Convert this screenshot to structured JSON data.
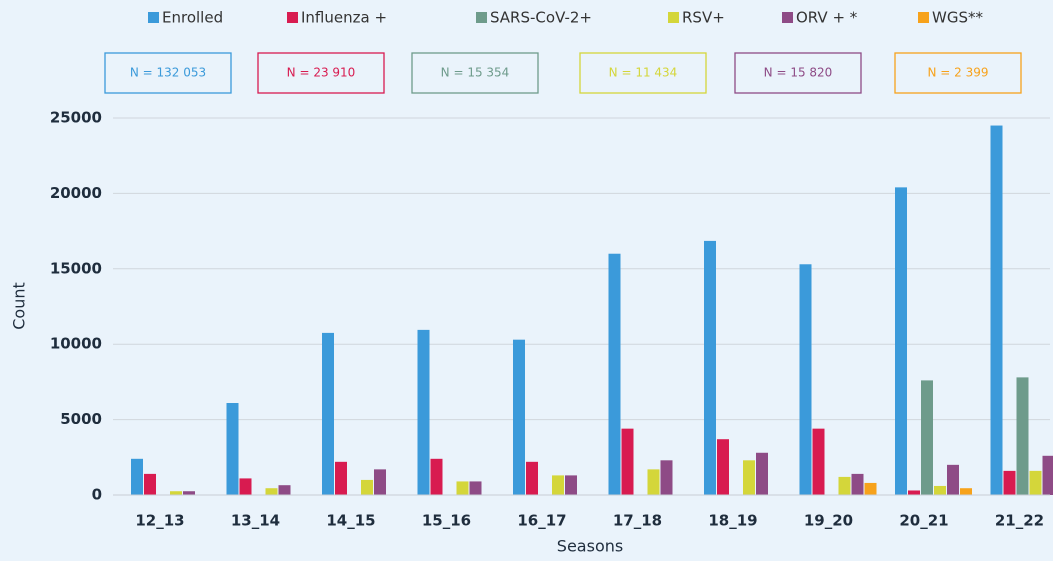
{
  "chart_data": {
    "type": "bar",
    "categories": [
      "12_13",
      "13_14",
      "14_15",
      "15_16",
      "16_17",
      "17_18",
      "18_19",
      "19_20",
      "20_21",
      "21_22"
    ],
    "series": [
      {
        "name": "Enrolled",
        "color": "#3b9ada",
        "n_label": "N = 132 053",
        "values": [
          2400,
          6100,
          10750,
          10950,
          10300,
          16000,
          16850,
          15300,
          20400,
          24500
        ]
      },
      {
        "name": "Influenza +",
        "color": "#d81b50",
        "n_label": "N = 23 910",
        "values": [
          1400,
          1100,
          2200,
          2400,
          2200,
          4400,
          3700,
          4400,
          300,
          1600
        ]
      },
      {
        "name": "SARS-CoV-2+",
        "color": "#6e9b8b",
        "n_label": "N = 15 354",
        "values": [
          null,
          null,
          null,
          null,
          null,
          null,
          null,
          null,
          7600,
          7800
        ]
      },
      {
        "name": "RSV+",
        "color": "#d4d63a",
        "n_label": "N = 11 434",
        "values": [
          250,
          450,
          1000,
          900,
          1300,
          1700,
          2300,
          1200,
          600,
          1600
        ]
      },
      {
        "name": "ORV + *",
        "color": "#8e4b86",
        "n_label": "N = 15 820",
        "values": [
          250,
          650,
          1700,
          900,
          1300,
          2300,
          2800,
          1400,
          2000,
          2600
        ]
      },
      {
        "name": "WGS**",
        "color": "#f7a21b",
        "n_label": "N = 2 399",
        "values": [
          null,
          null,
          null,
          null,
          null,
          null,
          null,
          800,
          450,
          1100
        ]
      }
    ],
    "xlabel": "Seasons",
    "ylabel": "Count",
    "ylim": [
      0,
      25000
    ],
    "yticks": [
      0,
      5000,
      10000,
      15000,
      20000,
      25000
    ],
    "grid": true
  }
}
